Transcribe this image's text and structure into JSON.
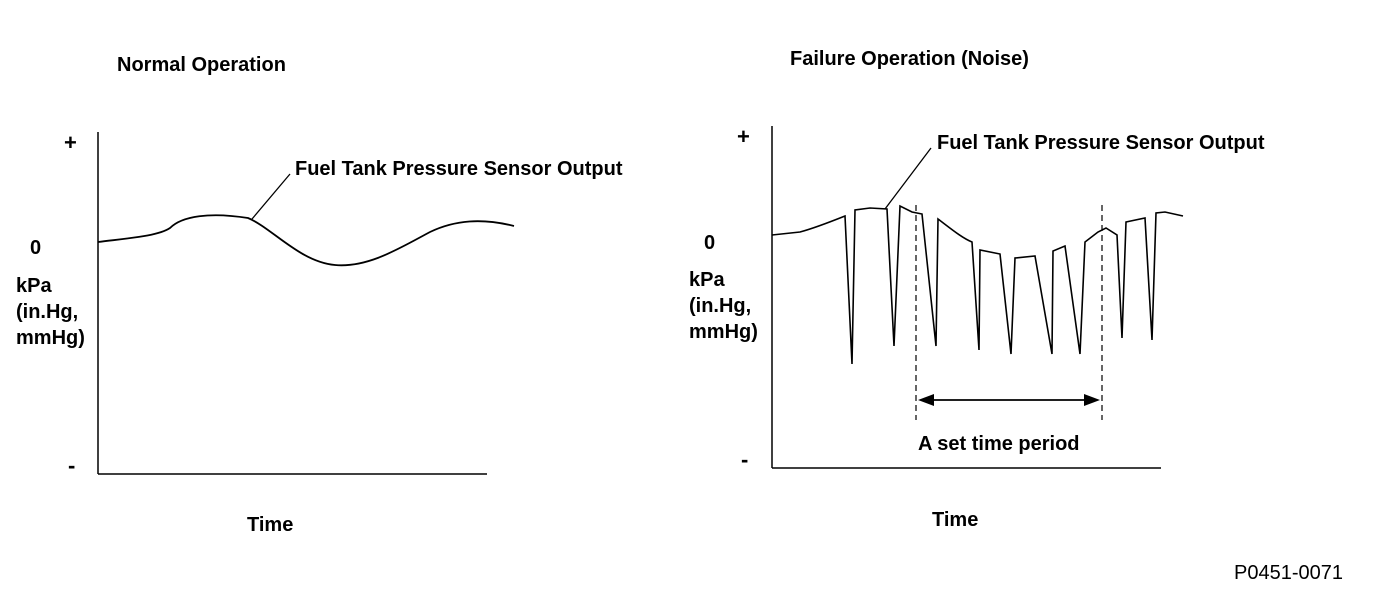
{
  "left_panel": {
    "title": "Normal Operation",
    "series_label": "Fuel Tank Pressure Sensor Output",
    "y_plus": "+",
    "y_zero": "0",
    "y_unit_line1": "kPa",
    "y_unit_line2": "(in.Hg,",
    "y_unit_line3": "mmHg)",
    "y_minus": "-",
    "x_label": "Time"
  },
  "right_panel": {
    "title": "Failure Operation (Noise)",
    "series_label": "Fuel Tank Pressure Sensor Output",
    "y_plus": "+",
    "y_zero": "0",
    "y_unit_line1": "kPa",
    "y_unit_line2": "(in.Hg,",
    "y_unit_line3": "mmHg)",
    "y_minus": "-",
    "x_label": "Time",
    "period_label": "A set time period"
  },
  "figure_code": "P0451-0071"
}
